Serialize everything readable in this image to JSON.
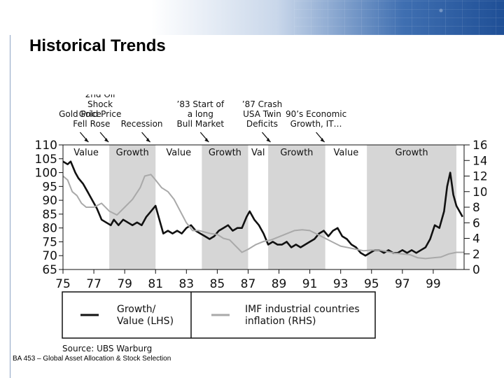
{
  "slide": {
    "title": "Historical Trends",
    "footer": "BA 453 – Global Asset Allocation & Stock Selection"
  },
  "colors": {
    "growth_line": "#111111",
    "inflation_line": "#a9a9a9",
    "growth_band": "#d6d6d6"
  },
  "chart_data": {
    "type": "line",
    "title": "",
    "xlabel": "",
    "ylabel_left": "",
    "ylabel_right": "",
    "x_ticks": [
      "75",
      "77",
      "79",
      "81",
      "83",
      "85",
      "87",
      "89",
      "91",
      "93",
      "95",
      "97",
      "99"
    ],
    "y_left_ticks": [
      "110",
      "105",
      "100",
      "95",
      "90",
      "85",
      "80",
      "75",
      "70",
      "65"
    ],
    "y_right_ticks": [
      "16",
      "14",
      "12",
      "10",
      "8",
      "6",
      "4",
      "2",
      "0"
    ],
    "y_left_range": [
      65,
      110
    ],
    "y_right_range": [
      0,
      16
    ],
    "x_range": [
      1975,
      2001
    ],
    "regimes": [
      {
        "label": "Value",
        "start": 1975,
        "end": 1978.0,
        "shaded": false
      },
      {
        "label": "Growth",
        "start": 1978.0,
        "end": 1981.0,
        "shaded": true
      },
      {
        "label": "Value",
        "start": 1981.0,
        "end": 1984.0,
        "shaded": false
      },
      {
        "label": "Growth",
        "start": 1984.0,
        "end": 1987.0,
        "shaded": true
      },
      {
        "label": "Val",
        "start": 1987.0,
        "end": 1988.3,
        "shaded": false
      },
      {
        "label": "Growth",
        "start": 1988.3,
        "end": 1992.0,
        "shaded": true
      },
      {
        "label": "Value",
        "start": 1992.0,
        "end": 1994.7,
        "shaded": false
      },
      {
        "label": "Growth",
        "start": 1994.7,
        "end": 2000.5,
        "shaded": true
      }
    ],
    "annotations": [
      {
        "id": "a1",
        "lines": [
          "Gold Price",
          "Fell"
        ],
        "x": 1975.2
      },
      {
        "id": "a2",
        "lines": [
          "2nd Oil",
          "Shock",
          "Gold Price",
          "Rose"
        ],
        "x": 1976.5
      },
      {
        "id": "a3",
        "lines": [
          "Recession"
        ],
        "x": 1979.2
      },
      {
        "id": "a4",
        "lines": [
          "’83 Start of",
          "a long",
          "Bull Market"
        ],
        "x": 1983.0
      },
      {
        "id": "a5",
        "lines": [
          "’87  Crash",
          "USA Twin",
          "Deficits"
        ],
        "x": 1987.0
      },
      {
        "id": "a6",
        "lines": [
          "90’s Economic",
          "Growth, IT…"
        ],
        "x": 1990.5
      }
    ],
    "series": [
      {
        "name": "Growth/ Value (LHS)",
        "axis": "left",
        "points": [
          [
            1975,
            104
          ],
          [
            1975.3,
            103
          ],
          [
            1975.5,
            104
          ],
          [
            1975.8,
            100
          ],
          [
            1976.0,
            98
          ],
          [
            1976.3,
            96
          ],
          [
            1976.6,
            93
          ],
          [
            1976.9,
            90
          ],
          [
            1977.2,
            87
          ],
          [
            1977.5,
            83
          ],
          [
            1977.8,
            82
          ],
          [
            1978.1,
            81
          ],
          [
            1978.3,
            83
          ],
          [
            1978.6,
            81
          ],
          [
            1978.9,
            83
          ],
          [
            1979.2,
            82
          ],
          [
            1979.5,
            81
          ],
          [
            1979.8,
            82
          ],
          [
            1980.1,
            81
          ],
          [
            1980.4,
            84
          ],
          [
            1980.7,
            86
          ],
          [
            1981.0,
            88
          ],
          [
            1981.2,
            84
          ],
          [
            1981.5,
            78
          ],
          [
            1981.8,
            79
          ],
          [
            1982.1,
            78
          ],
          [
            1982.4,
            79
          ],
          [
            1982.7,
            78
          ],
          [
            1983.0,
            80
          ],
          [
            1983.3,
            81
          ],
          [
            1983.6,
            79
          ],
          [
            1983.9,
            78
          ],
          [
            1984.2,
            77
          ],
          [
            1984.5,
            76
          ],
          [
            1984.8,
            77
          ],
          [
            1985.1,
            79
          ],
          [
            1985.4,
            80
          ],
          [
            1985.7,
            81
          ],
          [
            1986.0,
            79
          ],
          [
            1986.3,
            80
          ],
          [
            1986.6,
            80
          ],
          [
            1986.9,
            84
          ],
          [
            1987.1,
            86
          ],
          [
            1987.4,
            83
          ],
          [
            1987.7,
            81
          ],
          [
            1988.0,
            78
          ],
          [
            1988.3,
            74
          ],
          [
            1988.6,
            75
          ],
          [
            1988.9,
            74
          ],
          [
            1989.2,
            74
          ],
          [
            1989.5,
            75
          ],
          [
            1989.8,
            73
          ],
          [
            1990.1,
            74
          ],
          [
            1990.4,
            73
          ],
          [
            1990.7,
            74
          ],
          [
            1991.0,
            75
          ],
          [
            1991.3,
            76
          ],
          [
            1991.6,
            78
          ],
          [
            1991.9,
            79
          ],
          [
            1992.2,
            77
          ],
          [
            1992.5,
            79
          ],
          [
            1992.8,
            80
          ],
          [
            1993.1,
            77
          ],
          [
            1993.4,
            76
          ],
          [
            1993.7,
            74
          ],
          [
            1994.0,
            73
          ],
          [
            1994.3,
            71
          ],
          [
            1994.6,
            70
          ],
          [
            1994.9,
            71
          ],
          [
            1995.2,
            72
          ],
          [
            1995.5,
            72
          ],
          [
            1995.8,
            71
          ],
          [
            1996.1,
            72
          ],
          [
            1996.4,
            71
          ],
          [
            1996.7,
            71
          ],
          [
            1997.0,
            72
          ],
          [
            1997.3,
            71
          ],
          [
            1997.6,
            72
          ],
          [
            1997.9,
            71
          ],
          [
            1998.2,
            72
          ],
          [
            1998.5,
            73
          ],
          [
            1998.8,
            76
          ],
          [
            1999.1,
            81
          ],
          [
            1999.4,
            80
          ],
          [
            1999.7,
            86
          ],
          [
            1999.9,
            95
          ],
          [
            2000.1,
            100
          ],
          [
            2000.3,
            92
          ],
          [
            2000.5,
            88
          ],
          [
            2000.7,
            86
          ],
          [
            2000.9,
            84
          ]
        ]
      },
      {
        "name": "IMF industrial countries inflation (RHS)",
        "axis": "right",
        "points": [
          [
            1975,
            12.0
          ],
          [
            1975.3,
            11.5
          ],
          [
            1975.6,
            10.0
          ],
          [
            1975.9,
            9.5
          ],
          [
            1976.2,
            8.5
          ],
          [
            1976.5,
            8.0
          ],
          [
            1977.0,
            8.0
          ],
          [
            1977.5,
            8.5
          ],
          [
            1978.0,
            7.5
          ],
          [
            1978.5,
            7.0
          ],
          [
            1979.0,
            8.0
          ],
          [
            1979.5,
            9.0
          ],
          [
            1980.0,
            10.5
          ],
          [
            1980.3,
            12.0
          ],
          [
            1980.7,
            12.2
          ],
          [
            1981.0,
            11.5
          ],
          [
            1981.4,
            10.5
          ],
          [
            1981.8,
            10.0
          ],
          [
            1982.2,
            9.0
          ],
          [
            1982.6,
            7.5
          ],
          [
            1983.0,
            6.0
          ],
          [
            1983.4,
            5.0
          ],
          [
            1983.8,
            5.0
          ],
          [
            1984.2,
            4.8
          ],
          [
            1984.6,
            4.6
          ],
          [
            1985.0,
            4.5
          ],
          [
            1985.4,
            4.0
          ],
          [
            1985.8,
            3.8
          ],
          [
            1986.2,
            3.0
          ],
          [
            1986.6,
            2.2
          ],
          [
            1987.0,
            2.6
          ],
          [
            1987.5,
            3.2
          ],
          [
            1988.0,
            3.6
          ],
          [
            1988.5,
            3.8
          ],
          [
            1989.0,
            4.2
          ],
          [
            1989.5,
            4.6
          ],
          [
            1990.0,
            5.0
          ],
          [
            1990.5,
            5.1
          ],
          [
            1991.0,
            5.0
          ],
          [
            1991.5,
            4.5
          ],
          [
            1992.0,
            4.0
          ],
          [
            1992.5,
            3.5
          ],
          [
            1993.0,
            3.0
          ],
          [
            1993.5,
            2.8
          ],
          [
            1994.0,
            2.6
          ],
          [
            1994.5,
            2.4
          ],
          [
            1995.0,
            2.5
          ],
          [
            1995.5,
            2.5
          ],
          [
            1996.0,
            2.3
          ],
          [
            1996.5,
            2.1
          ],
          [
            1997.0,
            2.0
          ],
          [
            1997.5,
            1.9
          ],
          [
            1998.0,
            1.5
          ],
          [
            1998.5,
            1.4
          ],
          [
            1999.0,
            1.5
          ],
          [
            1999.5,
            1.6
          ],
          [
            2000.0,
            2.0
          ],
          [
            2000.5,
            2.2
          ],
          [
            2001.0,
            2.2
          ]
        ]
      }
    ],
    "legend": [
      {
        "label_line1": "Growth/",
        "label_line2": "Value (LHS)",
        "color": "#111111"
      },
      {
        "label_line1": "IMF industrial countries",
        "label_line2": "inflation (RHS)",
        "color": "#a9a9a9"
      }
    ],
    "source": "Source: UBS Warburg"
  }
}
